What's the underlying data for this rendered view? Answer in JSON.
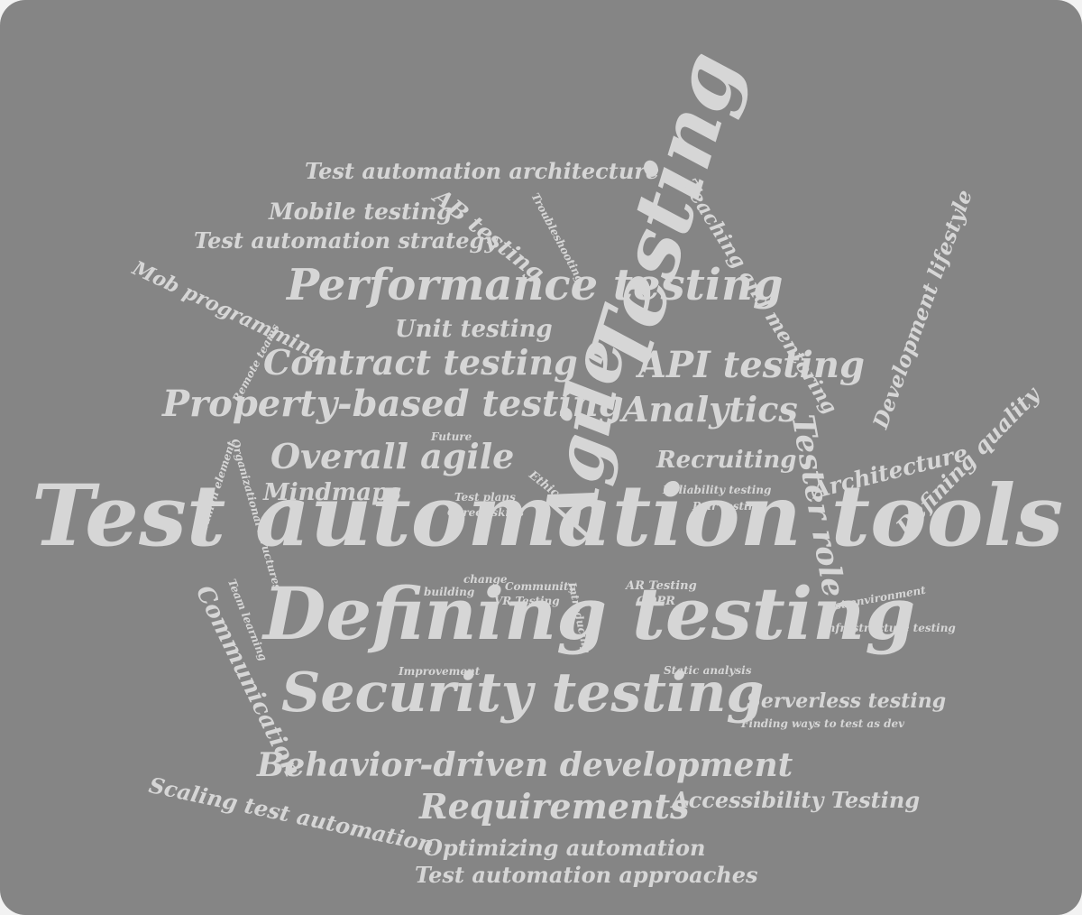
{
  "words": [
    "Test automation tools",
    "Defining testing",
    "Security testing",
    "Testing",
    "Agile",
    "Performance testing",
    "Behavior-driven development",
    "Property-based testing",
    "Contract testing",
    "API testing",
    "Analytics",
    "Overall agile",
    "Requirements",
    "Tester role",
    "Test automation architecture",
    "Mobile testing",
    "Test automation strategy",
    "Mob programming",
    "AB testing",
    "Teaching and mentoring",
    "Development lifestyle",
    "Unit testing",
    "Remote teams",
    "Troubleshooting",
    "Architecture",
    "Defining quality",
    "Recruiting",
    "Mindmaps",
    "Future",
    "Ethics",
    "Test plans",
    "Career skills",
    "Reliability testing",
    "Pair testing",
    "Human element",
    "Organizational structures",
    "Communication",
    "Team learning",
    "change",
    "building",
    "Community",
    "VR Testing",
    "Introducing",
    "AR Testing",
    "GDPR",
    "Test environment",
    "Infrastructure testing",
    "Improvement",
    "Static analysis",
    "Serverless testing",
    "Finding ways to test as dev",
    "Scaling test automation",
    "Accessibility Testing",
    "Optimizing automation",
    "Test automation approaches"
  ]
}
